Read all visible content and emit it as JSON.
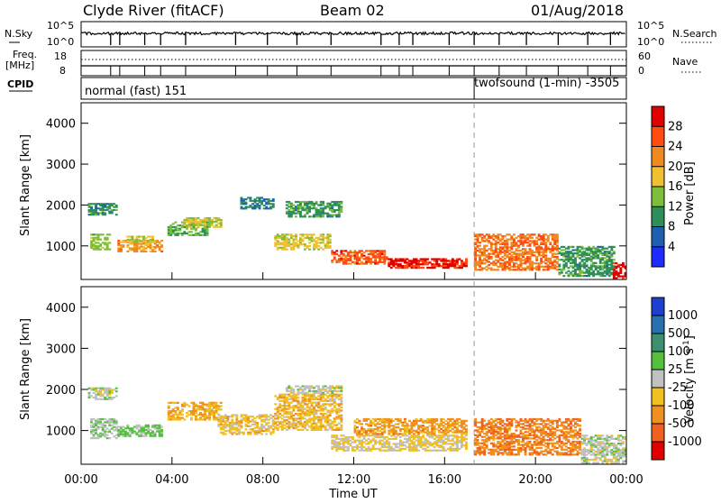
{
  "header": {
    "station": "Clyde River (fitACF)",
    "beam": "Beam 02",
    "date": "01/Aug/2018"
  },
  "noise_panel": {
    "left_label": "N.Sky",
    "right_label": "N.Search",
    "left_ticks": [
      "10^5",
      "10^0"
    ],
    "right_ticks": [
      "10^5",
      "10^0"
    ]
  },
  "freq_panel": {
    "left_label_1": "Freq.",
    "left_label_2": "[MHz]",
    "left_ticks": [
      "18",
      "8"
    ],
    "right_label": "Nave",
    "right_ticks": [
      "60",
      "0"
    ]
  },
  "cpid_panel": {
    "label": "CPID",
    "modes": [
      {
        "name": "normal (fast) 151",
        "start_hour": 0
      },
      {
        "name": "twofsound (1-min) -3505",
        "start_hour": 17.3
      }
    ]
  },
  "x_axis": {
    "label": "Time UT",
    "ticks": [
      "00:00",
      "04:00",
      "08:00",
      "12:00",
      "16:00",
      "20:00",
      "00:00"
    ]
  },
  "y_axis": {
    "label": "Slant Range [km]",
    "ticks": [
      "1000",
      "2000",
      "3000",
      "4000"
    ]
  },
  "power_colorbar": {
    "label": "Power [dB]",
    "ticks": [
      "4",
      "8",
      "12",
      "16",
      "20",
      "24",
      "28"
    ],
    "colors": [
      "#1f2cff",
      "#1f5fb0",
      "#2f8f5a",
      "#7dbf3a",
      "#f0c030",
      "#f08a20",
      "#ff4a10",
      "#e00000"
    ]
  },
  "velocity_colorbar": {
    "label": "Velocity [m s",
    "label_sup": "-1",
    "label_end": "]",
    "ticks": [
      "1000",
      "500",
      "100",
      "25",
      "-25",
      "-100",
      "-500",
      "-1000"
    ],
    "colors": [
      "#1f3fd0",
      "#2a6fb0",
      "#3c9070",
      "#55c040",
      "#c0c0c0",
      "#f0c020",
      "#f09020",
      "#f06020",
      "#e00000"
    ]
  },
  "chart_data": {
    "type": "heatmap",
    "title": "Clyde River (fitACF)",
    "xlabel": "Time UT",
    "ylabel": "Slant Range [km]",
    "xlim": [
      0,
      24
    ],
    "ylim": [
      180,
      4500
    ],
    "grid": false,
    "panels": [
      {
        "name": "Power",
        "units": "dB",
        "clim": [
          0,
          30
        ],
        "regions": [
          {
            "t0": 0.3,
            "t1": 1.6,
            "r0": 1750,
            "r1": 2050,
            "value": 9
          },
          {
            "t0": 0.4,
            "t1": 1.3,
            "r0": 900,
            "r1": 1300,
            "value": 13
          },
          {
            "t0": 1.6,
            "t1": 3.6,
            "r0": 850,
            "r1": 1150,
            "value": 20
          },
          {
            "t0": 2.0,
            "t1": 3.2,
            "r0": 1100,
            "r1": 1250,
            "value": 14
          },
          {
            "t0": 3.8,
            "t1": 5.6,
            "r0": 1250,
            "r1": 1600,
            "value": 12
          },
          {
            "t0": 4.5,
            "t1": 6.2,
            "r0": 1450,
            "r1": 1700,
            "value": 15
          },
          {
            "t0": 7.0,
            "t1": 8.5,
            "r0": 1900,
            "r1": 2200,
            "value": 8
          },
          {
            "t0": 8.5,
            "t1": 11.0,
            "r0": 900,
            "r1": 1300,
            "value": 16
          },
          {
            "t0": 9.0,
            "t1": 11.5,
            "r0": 1700,
            "r1": 2100,
            "value": 10
          },
          {
            "t0": 11.0,
            "t1": 13.5,
            "r0": 550,
            "r1": 900,
            "value": 24
          },
          {
            "t0": 13.5,
            "t1": 17.0,
            "r0": 450,
            "r1": 700,
            "value": 27
          },
          {
            "t0": 17.3,
            "t1": 21.0,
            "r0": 400,
            "r1": 1300,
            "value": 22
          },
          {
            "t0": 21.0,
            "t1": 23.5,
            "r0": 250,
            "r1": 1000,
            "value": 10
          },
          {
            "t0": 23.4,
            "t1": 24.0,
            "r0": 200,
            "r1": 600,
            "value": 28
          }
        ]
      },
      {
        "name": "Velocity",
        "units": "m s^-1",
        "clim": [
          -1000,
          1000
        ],
        "regions": [
          {
            "t0": 0.3,
            "t1": 1.6,
            "r0": 1750,
            "r1": 2050,
            "value": 0
          },
          {
            "t0": 0.4,
            "t1": 1.6,
            "r0": 800,
            "r1": 1300,
            "value": 100
          },
          {
            "t0": 1.6,
            "t1": 3.6,
            "r0": 850,
            "r1": 1150,
            "value": 150
          },
          {
            "t0": 3.8,
            "t1": 6.2,
            "r0": 1250,
            "r1": 1700,
            "value": -300
          },
          {
            "t0": 6.0,
            "t1": 8.5,
            "r0": 900,
            "r1": 1400,
            "value": -200
          },
          {
            "t0": 8.5,
            "t1": 11.5,
            "r0": 1000,
            "r1": 1900,
            "value": -250
          },
          {
            "t0": 9.0,
            "t1": 11.5,
            "r0": 1900,
            "r1": 2100,
            "value": 0
          },
          {
            "t0": 11.0,
            "t1": 17.0,
            "r0": 500,
            "r1": 900,
            "value": -150
          },
          {
            "t0": 12.0,
            "t1": 17.0,
            "r0": 900,
            "r1": 1300,
            "value": -400
          },
          {
            "t0": 17.3,
            "t1": 22.0,
            "r0": 400,
            "r1": 1300,
            "value": -500
          },
          {
            "t0": 22.0,
            "t1": 24.0,
            "r0": 200,
            "r1": 900,
            "value": 0
          }
        ]
      }
    ]
  }
}
